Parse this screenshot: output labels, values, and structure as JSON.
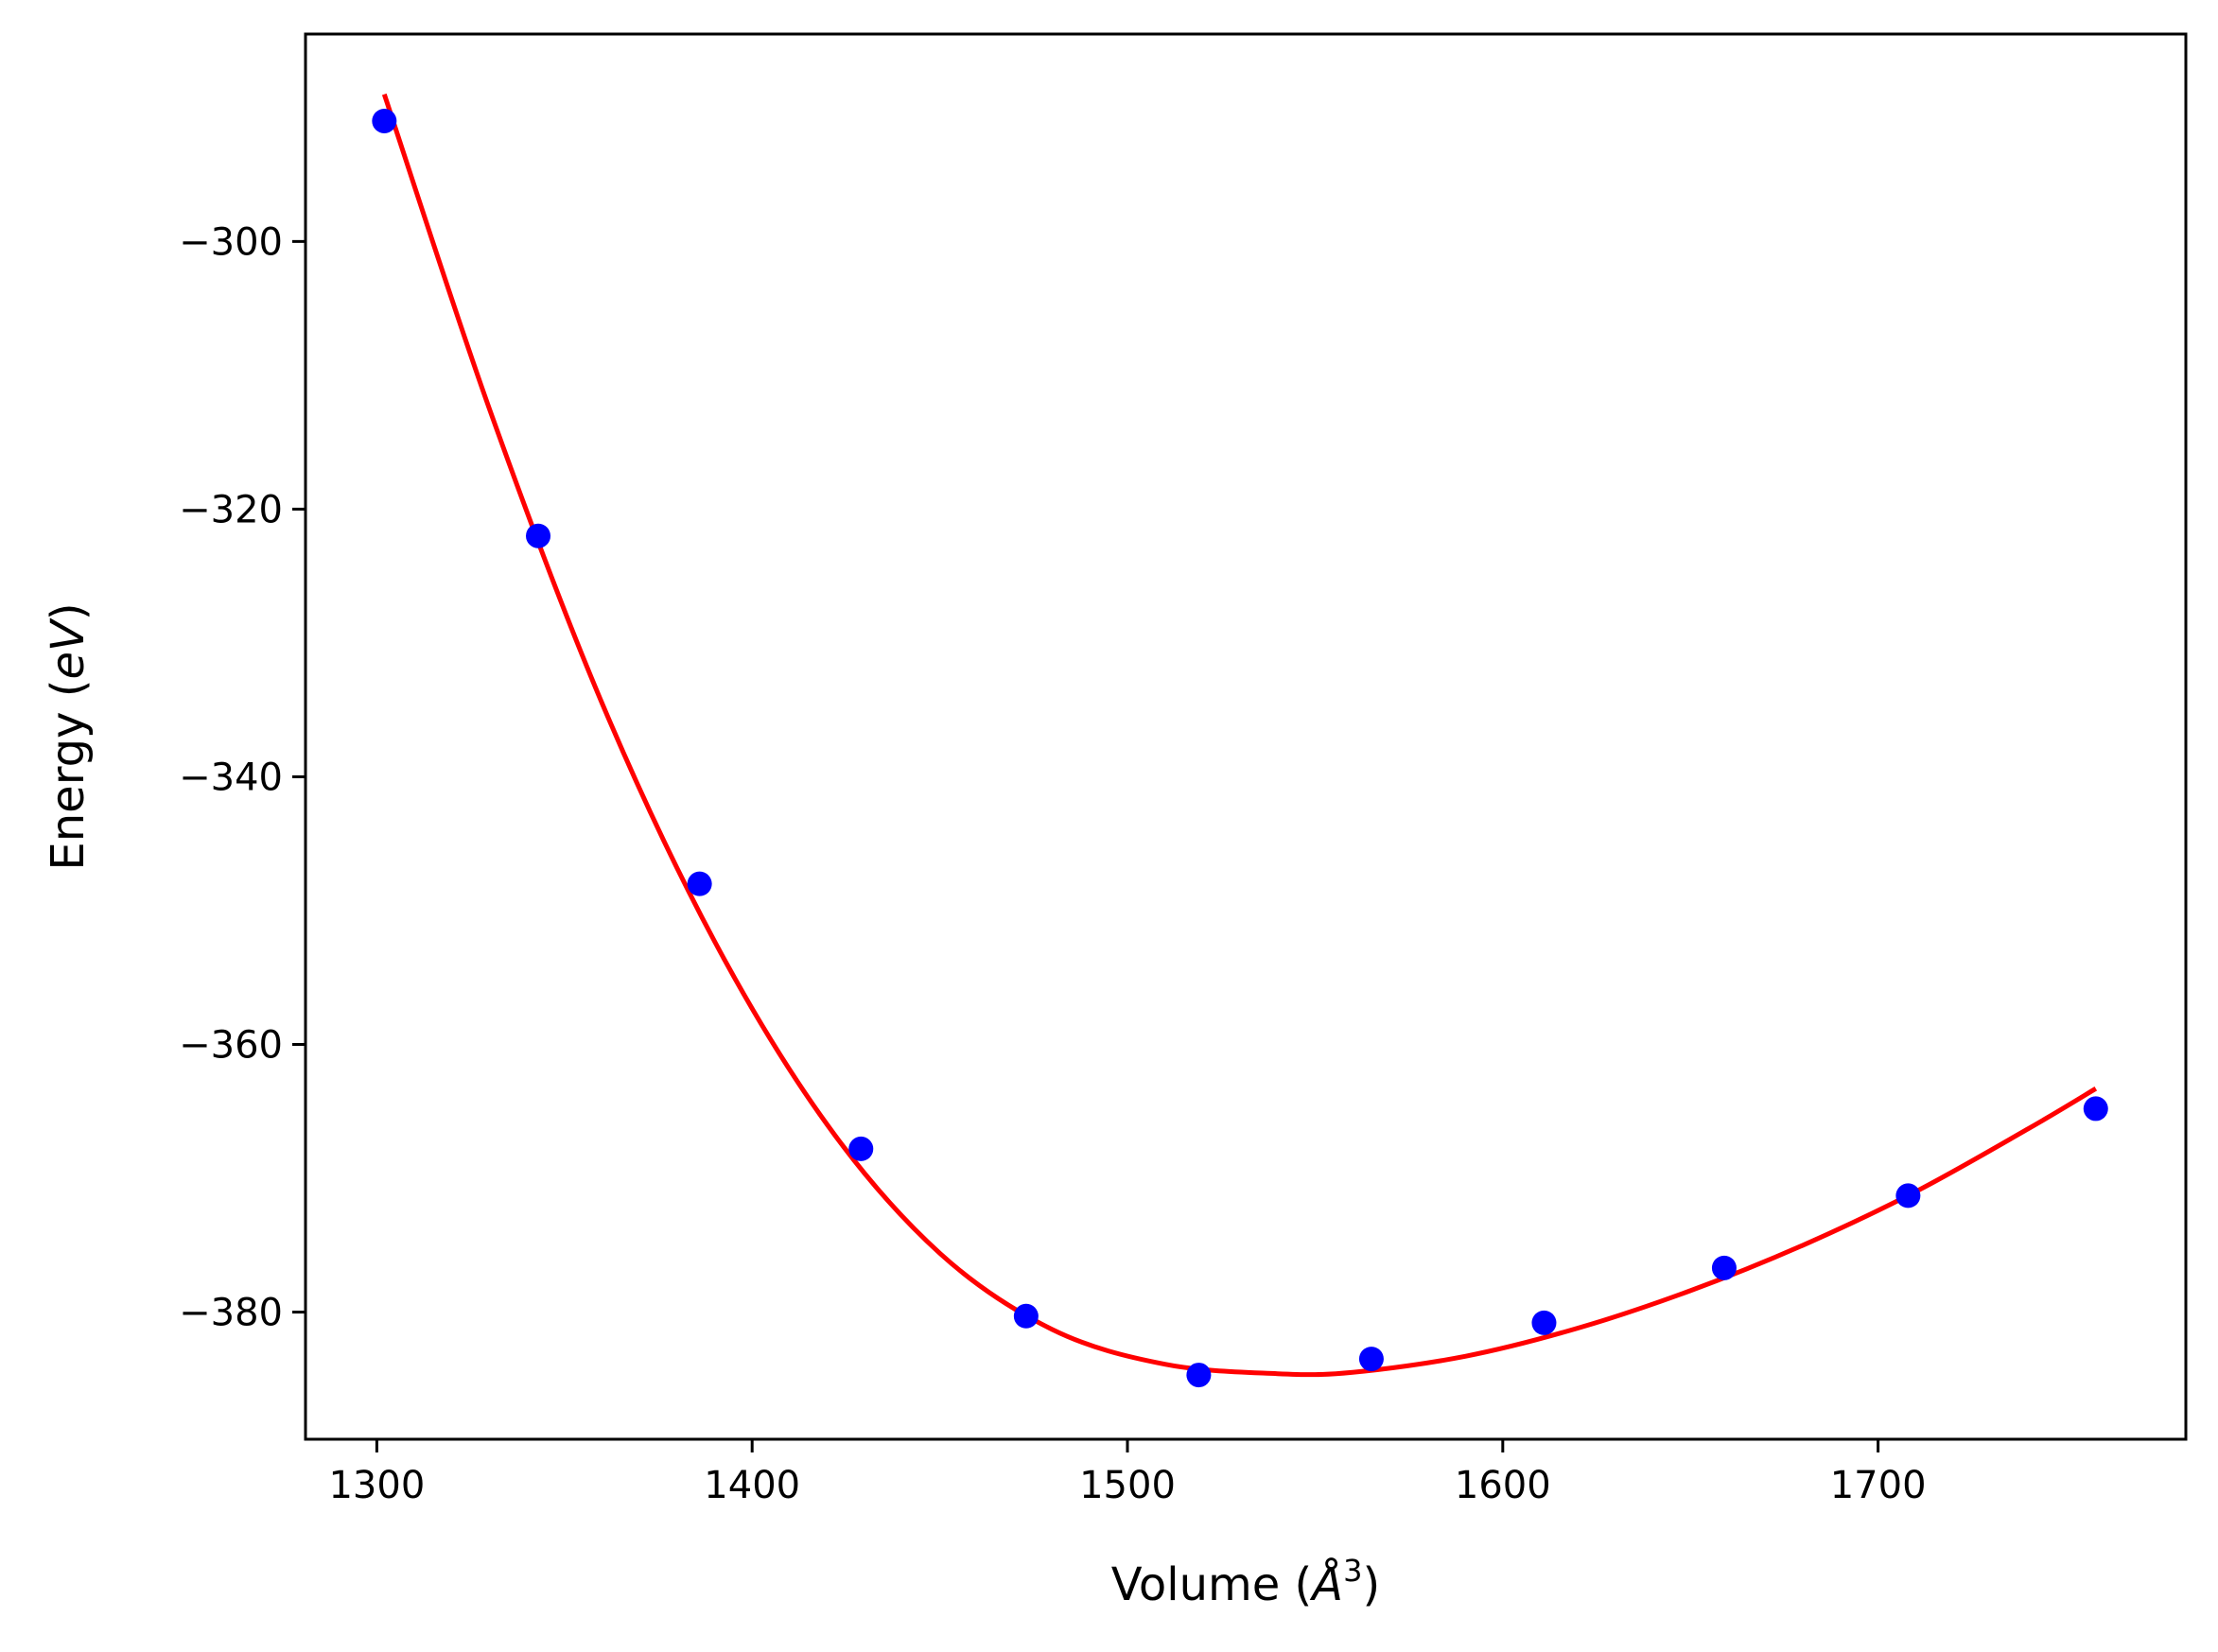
{
  "chart_data": {
    "type": "scatter",
    "title": "",
    "xlabel": "Volume (",
    "xlabel_unit": "Å",
    "xlabel_exp": "3",
    "xlabel_close": ")",
    "ylabel": "Energy (",
    "ylabel_unit": "eV",
    "ylabel_close": ")",
    "xlim": [
      1281,
      1782
    ],
    "ylim": [
      -389.5,
      -284.5
    ],
    "xticks": [
      1300,
      1400,
      1500,
      1600,
      1700
    ],
    "xtick_labels": [
      "1300",
      "1400",
      "1500",
      "1600",
      "1700"
    ],
    "yticks": [
      -380,
      -360,
      -340,
      -320,
      -300
    ],
    "ytick_labels": [
      "−380",
      "−360",
      "−340",
      "−320",
      "−300"
    ],
    "grid": false,
    "legend": "none",
    "series": [
      {
        "kind": "points",
        "color": "#0000ff",
        "x": [
          1302,
          1343,
          1386,
          1429,
          1473,
          1519,
          1565,
          1611,
          1659,
          1708,
          1758
        ],
        "y": [
          -291.0,
          -322.0,
          -348.0,
          -367.8,
          -380.3,
          -384.7,
          -383.5,
          -380.8,
          -376.7,
          -371.3,
          -364.8
        ]
      },
      {
        "kind": "fit-curve",
        "color": "#ff0000",
        "x": [
          1302,
          1330,
          1360,
          1390,
          1420,
          1450,
          1480,
          1510,
          1540,
          1560,
          1590,
          1620,
          1650,
          1680,
          1710,
          1740,
          1758
        ],
        "y": [
          -289.0,
          -312.5,
          -334.5,
          -352.3,
          -366.0,
          -375.6,
          -381.3,
          -383.9,
          -384.6,
          -384.5,
          -383.3,
          -381.2,
          -378.4,
          -375.0,
          -371.0,
          -366.3,
          -363.3
        ]
      }
    ]
  }
}
